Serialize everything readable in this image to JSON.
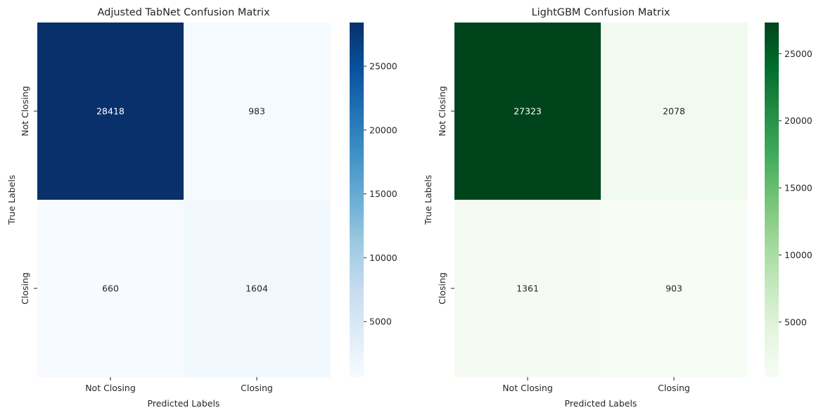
{
  "chart_data": [
    {
      "type": "heatmap",
      "title": "Adjusted TabNet Confusion Matrix",
      "xlabel": "Predicted Labels",
      "ylabel": "True Labels",
      "x_categories": [
        "Not Closing",
        "Closing"
      ],
      "y_categories": [
        "Not Closing",
        "Closing"
      ],
      "values": [
        [
          28418,
          983
        ],
        [
          660,
          1604
        ]
      ],
      "colormap": "Blues",
      "color_low": "#f7fbff",
      "color_high": "#08306b",
      "colorbar": {
        "range": [
          660,
          28418
        ],
        "ticks": [
          5000,
          10000,
          15000,
          20000,
          25000
        ]
      }
    },
    {
      "type": "heatmap",
      "title": "LightGBM Confusion Matrix",
      "xlabel": "Predicted Labels",
      "ylabel": "True Labels",
      "x_categories": [
        "Not Closing",
        "Closing"
      ],
      "y_categories": [
        "Not Closing",
        "Closing"
      ],
      "values": [
        [
          27323,
          2078
        ],
        [
          1361,
          903
        ]
      ],
      "colormap": "Greens",
      "color_low": "#f7fcf5",
      "color_high": "#00441b",
      "colorbar": {
        "range": [
          903,
          27323
        ],
        "ticks": [
          5000,
          10000,
          15000,
          20000,
          25000
        ]
      }
    }
  ]
}
